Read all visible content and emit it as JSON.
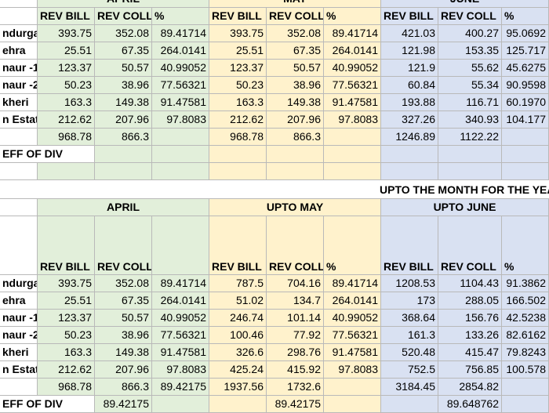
{
  "colors": {
    "april": "#e2efda",
    "may": "#fff2cc",
    "june": "#d9e1f2",
    "grid": "#b9b9b9"
  },
  "top": {
    "months": [
      "APRIL",
      "MAY",
      "JUNE"
    ],
    "headers": [
      "REV BILL",
      "REV COLL",
      "%",
      "REV BILL",
      "REV COLL",
      "%",
      "REV BILL",
      "REV COLL",
      "%"
    ],
    "rows": [
      {
        "name": "ndurgar",
        "vals": [
          "393.75",
          "352.08",
          "89.41714",
          "393.75",
          "352.08",
          "89.41714",
          "421.03",
          "400.27",
          "95.0692"
        ]
      },
      {
        "name": "ehra",
        "vals": [
          "25.51",
          "67.35",
          "264.0141",
          "25.51",
          "67.35",
          "264.0141",
          "121.98",
          "153.35",
          "125.717"
        ]
      },
      {
        "name": "naur -1",
        "vals": [
          "123.37",
          "50.57",
          "40.99052",
          "123.37",
          "50.57",
          "40.99052",
          "121.9",
          "55.62",
          "45.6275"
        ]
      },
      {
        "name": "naur -2",
        "vals": [
          "50.23",
          "38.96",
          "77.56321",
          "50.23",
          "38.96",
          "77.56321",
          "60.84",
          "55.34",
          "90.9598"
        ]
      },
      {
        "name": "kheri",
        "vals": [
          "163.3",
          "149.38",
          "91.47581",
          "163.3",
          "149.38",
          "91.47581",
          "193.88",
          "116.71",
          "60.1970"
        ]
      },
      {
        "name": "n Estat",
        "vals": [
          "212.62",
          "207.96",
          "97.8083",
          "212.62",
          "207.96",
          "97.8083",
          "327.26",
          "340.93",
          "104.177"
        ]
      },
      {
        "name": "",
        "vals": [
          "968.78",
          "866.3",
          "",
          "968.78",
          "866.3",
          "",
          "1246.89",
          "1122.22",
          ""
        ]
      }
    ],
    "eff_label": "EFF OF DIV"
  },
  "banner": "UPTO THE MONTH FOR THE YEA",
  "bottom": {
    "months": [
      "APRIL",
      "UPTO MAY",
      "UPTO JUNE"
    ],
    "headers": [
      "REV BILL",
      "REV COLL",
      "",
      "REV BILL",
      "REV COLL",
      "%",
      "REV BILL",
      "REV COLL",
      "%"
    ],
    "rows": [
      {
        "name": "ndurgar",
        "vals": [
          "393.75",
          "352.08",
          "89.41714",
          "787.5",
          "704.16",
          "89.41714",
          "1208.53",
          "1104.43",
          "91.3862"
        ]
      },
      {
        "name": "ehra",
        "vals": [
          "25.51",
          "67.35",
          "264.0141",
          "51.02",
          "134.7",
          "264.0141",
          "173",
          "288.05",
          "166.502"
        ]
      },
      {
        "name": "naur -1",
        "vals": [
          "123.37",
          "50.57",
          "40.99052",
          "246.74",
          "101.14",
          "40.99052",
          "368.64",
          "156.76",
          "42.5238"
        ]
      },
      {
        "name": "naur -2",
        "vals": [
          "50.23",
          "38.96",
          "77.56321",
          "100.46",
          "77.92",
          "77.56321",
          "161.3",
          "133.26",
          "82.6162"
        ]
      },
      {
        "name": "kheri",
        "vals": [
          "163.3",
          "149.38",
          "91.47581",
          "326.6",
          "298.76",
          "91.47581",
          "520.48",
          "415.47",
          "79.8243"
        ]
      },
      {
        "name": "n Estat",
        "vals": [
          "212.62",
          "207.96",
          "97.8083",
          "425.24",
          "415.92",
          "97.8083",
          "752.5",
          "756.85",
          "100.578"
        ]
      },
      {
        "name": "",
        "vals": [
          "968.78",
          "866.3",
          "89.42175",
          "1937.56",
          "1732.6",
          "",
          "3184.45",
          "2854.82",
          ""
        ]
      }
    ],
    "eff_label": "EFF OF DIV",
    "eff_vals": [
      "",
      "89.42175",
      "",
      "",
      "89.42175",
      "",
      "",
      "89.648762",
      ""
    ]
  }
}
